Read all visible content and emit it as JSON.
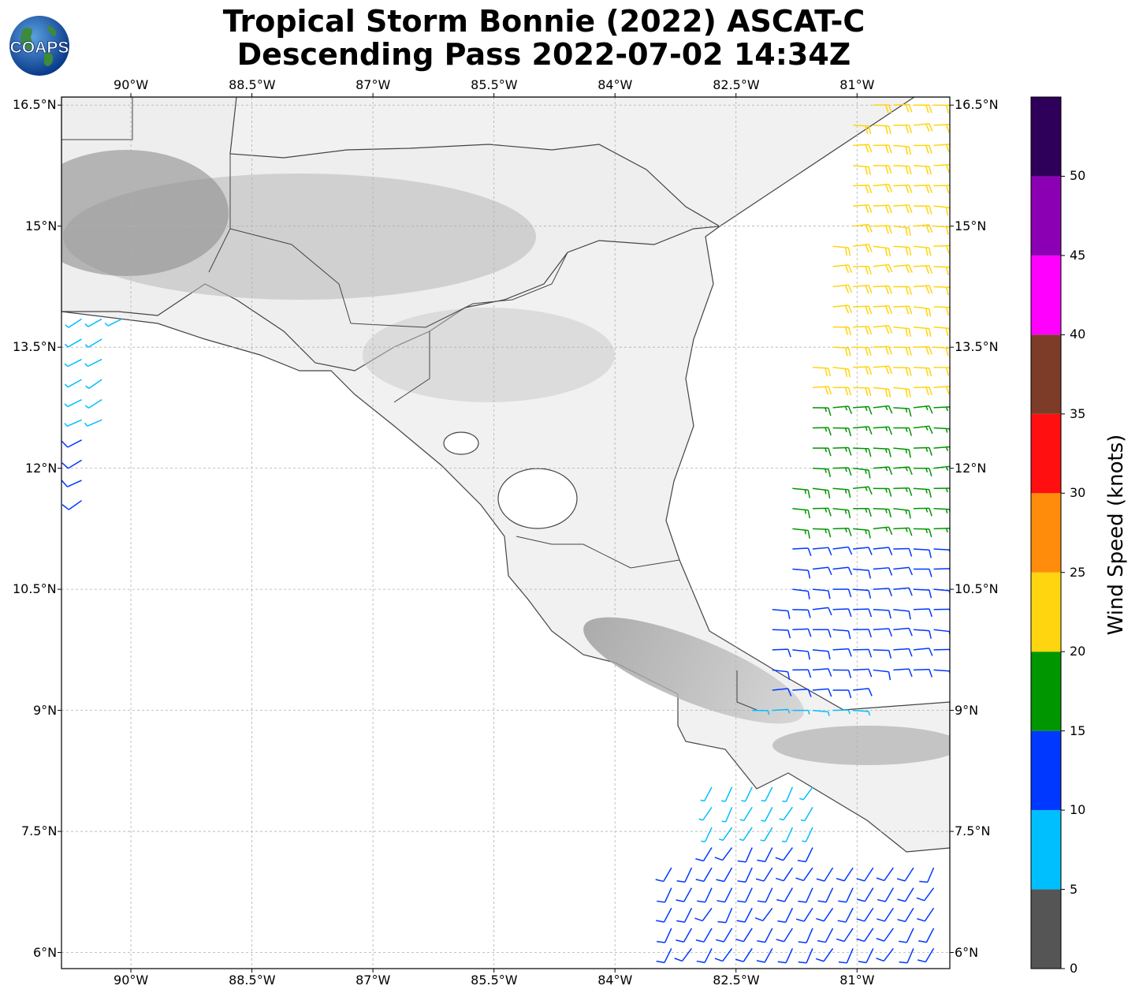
{
  "title": {
    "line1": "Tropical Storm Bonnie (2022) ASCAT-C",
    "line2": "Descending Pass 2022-07-02 14:34Z"
  },
  "logo_text": "COAPS",
  "map": {
    "lon_range": [
      -90.86,
      -79.85
    ],
    "lat_range": [
      5.8,
      16.6
    ],
    "lon_ticks": [
      {
        "value": -90.0,
        "label": "90°W"
      },
      {
        "value": -88.5,
        "label": "88.5°W"
      },
      {
        "value": -87.0,
        "label": "87°W"
      },
      {
        "value": -85.5,
        "label": "85.5°W"
      },
      {
        "value": -84.0,
        "label": "84°W"
      },
      {
        "value": -82.5,
        "label": "82.5°W"
      },
      {
        "value": -81.0,
        "label": "81°W"
      }
    ],
    "lat_ticks": [
      {
        "value": 16.5,
        "label": "16.5°N"
      },
      {
        "value": 15.0,
        "label": "15°N"
      },
      {
        "value": 13.5,
        "label": "13.5°N"
      },
      {
        "value": 12.0,
        "label": "12°N"
      },
      {
        "value": 10.5,
        "label": "10.5°N"
      },
      {
        "value": 9.0,
        "label": "9°N"
      },
      {
        "value": 7.5,
        "label": "7.5°N"
      },
      {
        "value": 6.0,
        "label": "6°N"
      }
    ],
    "grid": true,
    "land_shading": "grayscale terrain",
    "wind_swaths": [
      {
        "name": "east",
        "lon": [
          -82.3,
          -79.85
        ],
        "lat": [
          9.0,
          16.6
        ],
        "barb_spacing_deg": 0.25,
        "barb_direction_deg": 90
      },
      {
        "name": "south",
        "lon": [
          -83.3,
          -79.9
        ],
        "lat": [
          5.8,
          8.2
        ],
        "barb_spacing_deg": 0.25,
        "barb_direction_deg": 210
      },
      {
        "name": "west",
        "lon": [
          -90.86,
          -90.05
        ],
        "lat": [
          10.6,
          13.9
        ],
        "barb_spacing_deg": 0.25,
        "barb_direction_deg": 240
      }
    ]
  },
  "colorbar": {
    "label": "Wind Speed (knots)",
    "bins": [
      {
        "min": 0,
        "max": 5,
        "color": "#555555"
      },
      {
        "min": 5,
        "max": 10,
        "color": "#00bfff"
      },
      {
        "min": 10,
        "max": 15,
        "color": "#0038ff"
      },
      {
        "min": 15,
        "max": 20,
        "color": "#009600"
      },
      {
        "min": 20,
        "max": 25,
        "color": "#ffd50f"
      },
      {
        "min": 25,
        "max": 30,
        "color": "#ff8c0a"
      },
      {
        "min": 30,
        "max": 35,
        "color": "#ff0f0f"
      },
      {
        "min": 35,
        "max": 40,
        "color": "#7d3c28"
      },
      {
        "min": 40,
        "max": 45,
        "color": "#ff00ff"
      },
      {
        "min": 45,
        "max": 50,
        "color": "#8c00b4"
      },
      {
        "min": 50,
        "max": 55,
        "color": "#2e005a"
      }
    ],
    "ticks": [
      {
        "value": 0,
        "label": "0"
      },
      {
        "value": 5,
        "label": "5"
      },
      {
        "value": 10,
        "label": "10"
      },
      {
        "value": 15,
        "label": "15"
      },
      {
        "value": 20,
        "label": "20"
      },
      {
        "value": 25,
        "label": "25"
      },
      {
        "value": 30,
        "label": "30"
      },
      {
        "value": 35,
        "label": "35"
      },
      {
        "value": 40,
        "label": "40"
      },
      {
        "value": 45,
        "label": "45"
      },
      {
        "value": 50,
        "label": "50"
      }
    ]
  }
}
